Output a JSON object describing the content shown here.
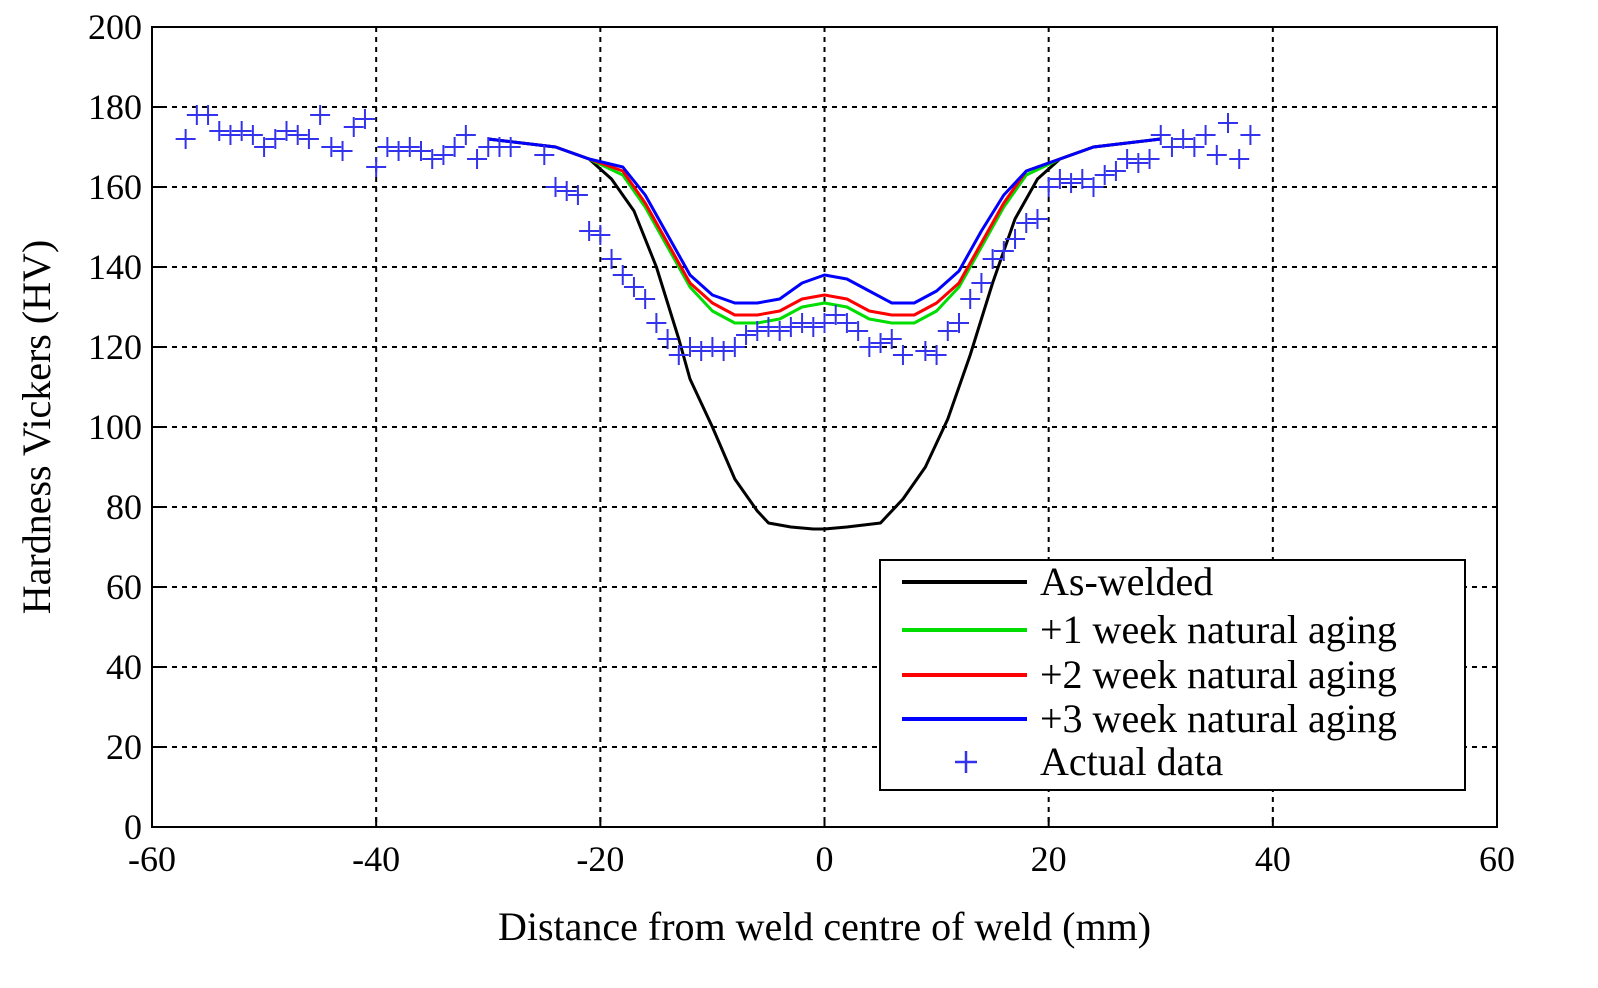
{
  "chart_data": {
    "type": "line",
    "title": "",
    "xlabel": "Distance from weld centre of weld (mm)",
    "ylabel": "Hardness Vickers (HV)",
    "xlim": [
      -60,
      60
    ],
    "ylim": [
      0,
      200
    ],
    "x_ticks": [
      -60,
      -40,
      -20,
      0,
      20,
      40,
      60
    ],
    "y_ticks": [
      0,
      20,
      40,
      60,
      80,
      100,
      120,
      140,
      160,
      180,
      200
    ],
    "grid": true,
    "legend_position": "bottom-right",
    "series": [
      {
        "name": "As-welded",
        "color": "#000000",
        "points": [
          [
            -30,
            172
          ],
          [
            -24,
            170
          ],
          [
            -21,
            167
          ],
          [
            -19,
            162
          ],
          [
            -17,
            154
          ],
          [
            -15,
            140
          ],
          [
            -13,
            122
          ],
          [
            -12,
            112
          ],
          [
            -10,
            100
          ],
          [
            -8,
            87
          ],
          [
            -6,
            79
          ],
          [
            -5,
            76
          ],
          [
            -3,
            75
          ],
          [
            -1,
            74.5
          ],
          [
            0,
            74.5
          ],
          [
            2,
            75
          ],
          [
            5,
            76
          ],
          [
            7,
            82
          ],
          [
            9,
            90
          ],
          [
            11,
            102
          ],
          [
            13,
            118
          ],
          [
            15,
            136
          ],
          [
            17,
            152
          ],
          [
            19,
            162
          ],
          [
            21,
            167
          ],
          [
            24,
            170
          ],
          [
            30,
            172
          ]
        ]
      },
      {
        "name": "+1 week natural aging",
        "color": "#00dd00",
        "points": [
          [
            -30,
            172
          ],
          [
            -24,
            170
          ],
          [
            -21,
            167
          ],
          [
            -18,
            163
          ],
          [
            -16,
            155
          ],
          [
            -14,
            145
          ],
          [
            -12,
            135
          ],
          [
            -10,
            129
          ],
          [
            -8,
            126
          ],
          [
            -6,
            126
          ],
          [
            -4,
            127
          ],
          [
            -2,
            130
          ],
          [
            0,
            131
          ],
          [
            2,
            130
          ],
          [
            4,
            127
          ],
          [
            6,
            126
          ],
          [
            8,
            126
          ],
          [
            10,
            129
          ],
          [
            12,
            135
          ],
          [
            14,
            145
          ],
          [
            16,
            155
          ],
          [
            18,
            163
          ],
          [
            21,
            167
          ],
          [
            24,
            170
          ],
          [
            30,
            172
          ]
        ]
      },
      {
        "name": "+2 week natural aging",
        "color": "#ff0000",
        "points": [
          [
            -30,
            172
          ],
          [
            -24,
            170
          ],
          [
            -21,
            167
          ],
          [
            -18,
            164
          ],
          [
            -16,
            156
          ],
          [
            -14,
            146
          ],
          [
            -12,
            136
          ],
          [
            -10,
            131
          ],
          [
            -8,
            128
          ],
          [
            -6,
            128
          ],
          [
            -4,
            129
          ],
          [
            -2,
            132
          ],
          [
            0,
            133
          ],
          [
            2,
            132
          ],
          [
            4,
            129
          ],
          [
            6,
            128
          ],
          [
            8,
            128
          ],
          [
            10,
            131
          ],
          [
            12,
            136
          ],
          [
            14,
            146
          ],
          [
            16,
            156
          ],
          [
            18,
            164
          ],
          [
            21,
            167
          ],
          [
            24,
            170
          ],
          [
            30,
            172
          ]
        ]
      },
      {
        "name": "+3 week natural aging",
        "color": "#0000ff",
        "points": [
          [
            -30,
            172
          ],
          [
            -24,
            170
          ],
          [
            -21,
            167
          ],
          [
            -18,
            165
          ],
          [
            -16,
            158
          ],
          [
            -14,
            148
          ],
          [
            -12,
            138
          ],
          [
            -10,
            133
          ],
          [
            -8,
            131
          ],
          [
            -6,
            131
          ],
          [
            -4,
            132
          ],
          [
            -2,
            136
          ],
          [
            0,
            138
          ],
          [
            2,
            137
          ],
          [
            4,
            134
          ],
          [
            6,
            131
          ],
          [
            8,
            131
          ],
          [
            10,
            134
          ],
          [
            12,
            139
          ],
          [
            14,
            149
          ],
          [
            16,
            158
          ],
          [
            18,
            164
          ],
          [
            21,
            167
          ],
          [
            24,
            170
          ],
          [
            30,
            172
          ]
        ]
      },
      {
        "name": "Actual data",
        "color": "#3333ee",
        "marker": "+",
        "points": [
          [
            -57,
            172
          ],
          [
            -56,
            178
          ],
          [
            -55,
            178
          ],
          [
            -54,
            174
          ],
          [
            -53,
            173
          ],
          [
            -52,
            174
          ],
          [
            -51,
            173
          ],
          [
            -50,
            170
          ],
          [
            -49,
            172
          ],
          [
            -48,
            174
          ],
          [
            -47,
            173
          ],
          [
            -46,
            172
          ],
          [
            -45,
            178
          ],
          [
            -44,
            170
          ],
          [
            -43,
            169
          ],
          [
            -42,
            175
          ],
          [
            -41,
            177
          ],
          [
            -40,
            165
          ],
          [
            -39,
            170
          ],
          [
            -38,
            169
          ],
          [
            -37,
            170
          ],
          [
            -36,
            169
          ],
          [
            -35,
            167
          ],
          [
            -34,
            168
          ],
          [
            -33,
            170
          ],
          [
            -32,
            173
          ],
          [
            -31,
            167
          ],
          [
            -30,
            170
          ],
          [
            -29,
            170
          ],
          [
            -28,
            170
          ],
          [
            -25,
            168
          ],
          [
            -24,
            160
          ],
          [
            -23,
            159
          ],
          [
            -22,
            158
          ],
          [
            -21,
            149
          ],
          [
            -20,
            148
          ],
          [
            -19,
            142
          ],
          [
            -18,
            138
          ],
          [
            -17,
            135
          ],
          [
            -16,
            132
          ],
          [
            -15,
            126
          ],
          [
            -14,
            122
          ],
          [
            -13,
            118
          ],
          [
            -12,
            120
          ],
          [
            -11,
            119
          ],
          [
            -10,
            120
          ],
          [
            -9,
            119
          ],
          [
            -8,
            120
          ],
          [
            -7,
            123
          ],
          [
            -6,
            124
          ],
          [
            -5,
            125
          ],
          [
            -4,
            124
          ],
          [
            -3,
            125
          ],
          [
            -2,
            126
          ],
          [
            -1,
            125
          ],
          [
            0,
            126
          ],
          [
            1,
            128
          ],
          [
            2,
            126
          ],
          [
            3,
            124
          ],
          [
            4,
            120
          ],
          [
            5,
            121
          ],
          [
            6,
            122
          ],
          [
            7,
            118
          ],
          [
            9,
            119
          ],
          [
            10,
            118
          ],
          [
            11,
            124
          ],
          [
            12,
            126
          ],
          [
            13,
            132
          ],
          [
            14,
            136
          ],
          [
            15,
            142
          ],
          [
            16,
            144
          ],
          [
            17,
            147
          ],
          [
            18,
            151
          ],
          [
            19,
            152
          ],
          [
            20,
            160
          ],
          [
            21,
            162
          ],
          [
            22,
            161
          ],
          [
            23,
            162
          ],
          [
            24,
            160
          ],
          [
            25,
            163
          ],
          [
            26,
            164
          ],
          [
            27,
            167
          ],
          [
            28,
            166
          ],
          [
            29,
            167
          ],
          [
            30,
            173
          ],
          [
            31,
            170
          ],
          [
            32,
            172
          ],
          [
            33,
            170
          ],
          [
            34,
            173
          ],
          [
            35,
            168
          ],
          [
            36,
            176
          ],
          [
            37,
            167
          ],
          [
            38,
            173
          ]
        ]
      }
    ]
  }
}
